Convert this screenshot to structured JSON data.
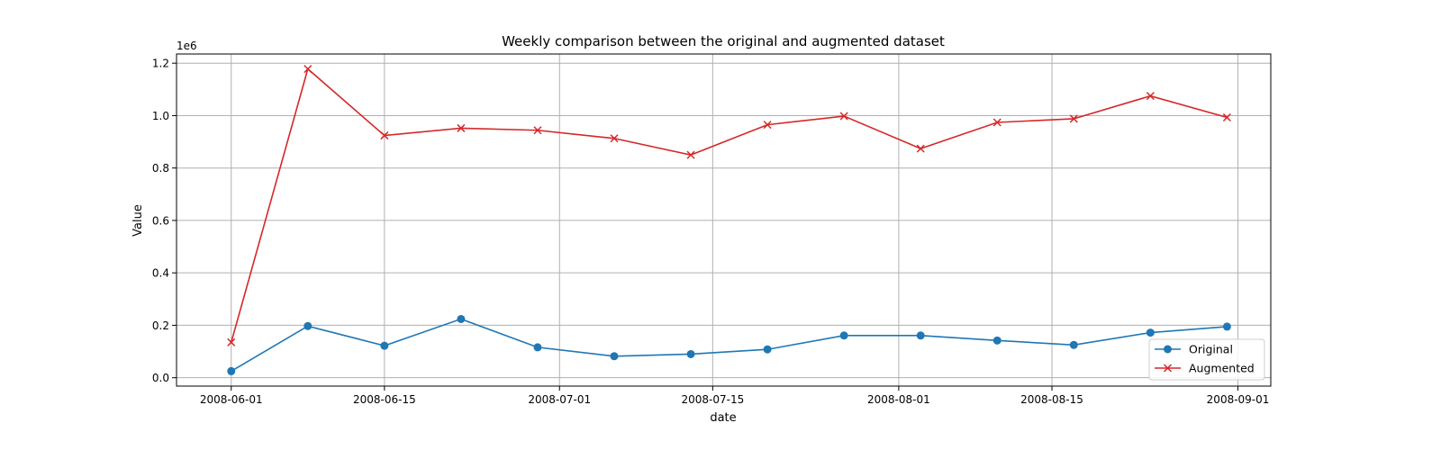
{
  "chart_data": {
    "type": "line",
    "title": "Weekly comparison between the original and augmented dataset",
    "xlabel": "date",
    "ylabel": "Value",
    "y_offset_label": "1e6",
    "x": [
      "2008-06-01",
      "2008-06-08",
      "2008-06-15",
      "2008-06-22",
      "2008-06-29",
      "2008-07-06",
      "2008-07-13",
      "2008-07-20",
      "2008-07-27",
      "2008-08-03",
      "2008-08-10",
      "2008-08-17",
      "2008-08-24",
      "2008-08-31"
    ],
    "series": [
      {
        "name": "Original",
        "color": "#1f77b4",
        "marker": "circle",
        "values": [
          25000,
          197000,
          122000,
          224000,
          116000,
          82000,
          90000,
          108000,
          161000,
          161000,
          142000,
          125000,
          172000,
          195000
        ]
      },
      {
        "name": "Augmented",
        "color": "#d62728",
        "marker": "x",
        "values": [
          135000,
          1178000,
          924000,
          952000,
          944000,
          913000,
          850000,
          965000,
          998000,
          874000,
          974000,
          988000,
          1075000,
          993000
        ]
      }
    ],
    "xticks": [
      "2008-06-01",
      "2008-06-15",
      "2008-07-01",
      "2008-07-15",
      "2008-08-01",
      "2008-08-15",
      "2008-09-01"
    ],
    "yticks": [
      0,
      200000,
      400000,
      600000,
      800000,
      1000000,
      1200000
    ],
    "ytick_labels": [
      "0.0",
      "0.2",
      "0.4",
      "0.6",
      "0.8",
      "1.0",
      "1.2"
    ],
    "ylim": [
      -32000,
      1235000
    ],
    "xlim": [
      "2008-05-27",
      "2008-09-04"
    ],
    "grid": true,
    "legend_position": "lower-right"
  }
}
